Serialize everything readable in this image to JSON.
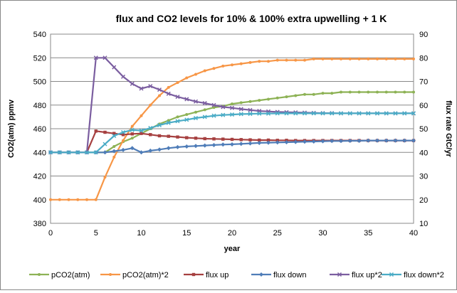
{
  "chart_data": {
    "type": "line",
    "title": "flux and CO2 levels for 10% & 100% extra upwelling + 1 K",
    "xlabel": "year",
    "ylabel": "CO2(atm) ppmv",
    "y2label": "flux rate GtC/yr",
    "xlim": [
      0,
      40
    ],
    "ylim": [
      380,
      540
    ],
    "y2lim": [
      10,
      90
    ],
    "x_ticks": [
      "0",
      "5",
      "10",
      "15",
      "20",
      "25",
      "30",
      "35",
      "40"
    ],
    "y_ticks": [
      "380",
      "400",
      "420",
      "440",
      "460",
      "480",
      "500",
      "520",
      "540"
    ],
    "y2_ticks": [
      "10",
      "20",
      "30",
      "40",
      "50",
      "60",
      "70",
      "80",
      "90"
    ],
    "grid": true,
    "legend_position": "bottom",
    "x": [
      0,
      1,
      2,
      3,
      4,
      5,
      6,
      7,
      8,
      9,
      10,
      11,
      12,
      13,
      14,
      15,
      16,
      17,
      18,
      19,
      20,
      21,
      22,
      23,
      24,
      25,
      26,
      27,
      28,
      29,
      30,
      31,
      32,
      33,
      34,
      35,
      36,
      37,
      38,
      39,
      40
    ],
    "series": [
      {
        "name": "pCO2(atm)",
        "axis": "left",
        "color": "#8db255",
        "marker": "circle",
        "values": [
          440,
          440,
          440,
          440,
          440,
          440,
          440,
          445,
          449,
          452,
          456,
          460,
          464,
          467,
          470,
          472,
          474,
          476,
          478,
          479,
          481,
          482,
          483,
          484,
          485,
          486,
          487,
          488,
          489,
          489,
          490,
          490,
          491,
          491,
          491,
          491,
          491,
          491,
          491,
          491,
          491
        ]
      },
      {
        "name": "pCO2(atm)*2",
        "axis": "left",
        "color": "#f79646",
        "marker": "circle",
        "values": [
          400,
          400,
          400,
          400,
          400,
          400,
          419,
          436,
          450,
          462,
          471,
          480,
          488,
          495,
          499,
          503,
          506,
          509,
          511,
          513,
          514,
          515,
          516,
          517,
          517,
          518,
          518,
          518,
          518,
          519,
          519,
          519,
          519,
          519,
          519,
          519,
          519,
          519,
          519,
          519,
          519
        ]
      },
      {
        "name": "flux up",
        "axis": "right",
        "color": "#a64040",
        "marker": "square",
        "values": [
          40,
          40,
          40,
          40,
          40,
          49,
          48.5,
          48,
          47.5,
          47.8,
          48,
          47.5,
          47,
          46.8,
          46.5,
          46.2,
          46,
          45.8,
          45.7,
          45.6,
          45.5,
          45.4,
          45.3,
          45.2,
          45.2,
          45.1,
          45.1,
          45,
          45,
          45,
          45,
          45,
          45,
          45,
          45,
          45,
          45,
          45,
          45,
          45,
          45
        ]
      },
      {
        "name": "flux down",
        "axis": "right",
        "color": "#4f7db8",
        "marker": "diamond",
        "values": [
          40,
          40,
          40,
          40,
          40,
          40,
          40,
          40.5,
          41,
          41.8,
          40,
          40.7,
          41.2,
          41.8,
          42.2,
          42.5,
          42.7,
          42.9,
          43.1,
          43.3,
          43.4,
          43.6,
          43.8,
          44,
          44.1,
          44.2,
          44.3,
          44.4,
          44.5,
          44.6,
          44.7,
          44.8,
          44.8,
          44.9,
          44.9,
          45,
          45,
          45,
          45,
          45,
          45
        ]
      },
      {
        "name": "flux up*2",
        "axis": "right",
        "color": "#7b5ea0",
        "marker": "cross",
        "values": [
          40,
          40,
          40,
          40,
          40,
          80,
          80,
          76,
          72,
          69,
          67,
          68,
          66.5,
          64.8,
          63.5,
          62.5,
          61.5,
          60.8,
          60,
          59.2,
          58.8,
          58.3,
          57.9,
          57.5,
          57.3,
          57.1,
          57,
          56.9,
          56.8,
          56.7,
          56.6,
          56.6,
          56.5,
          56.5,
          56.5,
          56.5,
          56.5,
          56.5,
          56.5,
          56.5,
          56.5
        ]
      },
      {
        "name": "flux down*2",
        "axis": "right",
        "color": "#4bacc6",
        "marker": "cross",
        "values": [
          40,
          40,
          40,
          40,
          40,
          40,
          43.5,
          47,
          48.5,
          49.5,
          49.2,
          50.3,
          51.5,
          52.5,
          53.2,
          53.8,
          54.5,
          55,
          55.5,
          55.8,
          56,
          56.2,
          56.3,
          56.4,
          56.4,
          56.5,
          56.5,
          56.5,
          56.5,
          56.5,
          56.5,
          56.5,
          56.5,
          56.5,
          56.5,
          56.5,
          56.5,
          56.5,
          56.5,
          56.5,
          56.5
        ]
      }
    ]
  }
}
